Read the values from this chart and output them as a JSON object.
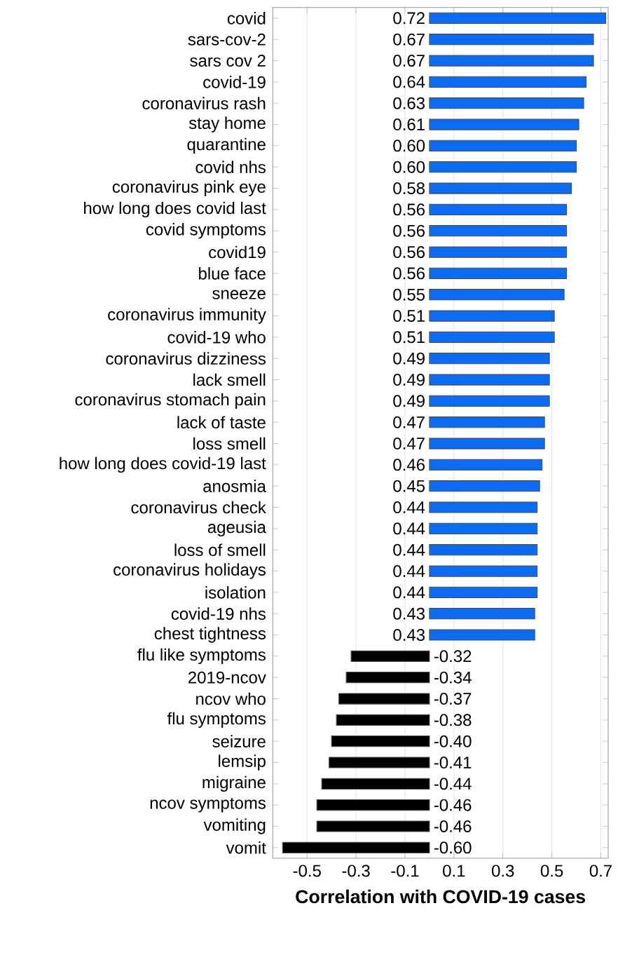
{
  "chart_data": {
    "type": "bar",
    "orientation": "horizontal",
    "xlabel": "Correlation with COVID-19 cases",
    "categories": [
      "covid",
      "sars-cov-2",
      "sars cov 2",
      "covid-19",
      "coronavirus rash",
      "stay home",
      "quarantine",
      "covid nhs",
      "coronavirus pink eye",
      "how long does covid last",
      "covid symptoms",
      "covid19",
      "blue face",
      "sneeze",
      "coronavirus immunity",
      "covid-19 who",
      "coronavirus dizziness",
      "lack smell",
      "coronavirus stomach pain",
      "lack of taste",
      "loss smell",
      "how long does covid-19 last",
      "anosmia",
      "coronavirus check",
      "ageusia",
      "loss of smell",
      "coronavirus holidays",
      "isolation",
      "covid-19 nhs",
      "chest tightness",
      "flu like symptoms",
      "2019-ncov",
      "ncov who",
      "flu symptoms",
      "seizure",
      "lemsip",
      "migraine",
      "ncov symptoms",
      "vomiting",
      "vomit"
    ],
    "values": [
      0.72,
      0.67,
      0.67,
      0.64,
      0.63,
      0.61,
      0.6,
      0.6,
      0.58,
      0.56,
      0.56,
      0.56,
      0.56,
      0.55,
      0.51,
      0.51,
      0.49,
      0.49,
      0.49,
      0.47,
      0.47,
      0.46,
      0.45,
      0.44,
      0.44,
      0.44,
      0.44,
      0.44,
      0.43,
      0.43,
      -0.32,
      -0.34,
      -0.37,
      -0.38,
      -0.4,
      -0.41,
      -0.44,
      -0.46,
      -0.46,
      -0.6
    ],
    "value_labels": [
      "0.72",
      "0.67",
      "0.67",
      "0.64",
      "0.63",
      "0.61",
      "0.60",
      "0.60",
      "0.58",
      "0.56",
      "0.56",
      "0.56",
      "0.56",
      "0.55",
      "0.51",
      "0.51",
      "0.49",
      "0.49",
      "0.49",
      "0.47",
      "0.47",
      "0.46",
      "0.45",
      "0.44",
      "0.44",
      "0.44",
      "0.44",
      "0.44",
      "0.43",
      "0.43",
      "-0.32",
      "-0.34",
      "-0.37",
      "-0.38",
      "-0.40",
      "-0.41",
      "-0.44",
      "-0.46",
      "-0.46",
      "-0.60"
    ],
    "colors": [
      "#0a6cf5",
      "#0a6cf5",
      "#0a6cf5",
      "#0a6cf5",
      "#0a6cf5",
      "#0a6cf5",
      "#0a6cf5",
      "#0a6cf5",
      "#0a6cf5",
      "#0a6cf5",
      "#0a6cf5",
      "#0a6cf5",
      "#0a6cf5",
      "#0a6cf5",
      "#0a6cf5",
      "#0a6cf5",
      "#0a6cf5",
      "#0a6cf5",
      "#0a6cf5",
      "#0a6cf5",
      "#0a6cf5",
      "#0a6cf5",
      "#0a6cf5",
      "#0a6cf5",
      "#0a6cf5",
      "#0a6cf5",
      "#0a6cf5",
      "#0a6cf5",
      "#0a6cf5",
      "#0a6cf5",
      "#000000",
      "#000000",
      "#000000",
      "#000000",
      "#000000",
      "#000000",
      "#000000",
      "#000000",
      "#000000",
      "#000000"
    ],
    "xlim": [
      -0.64,
      0.73
    ],
    "xticks": [
      -0.5,
      -0.3,
      -0.1,
      0.1,
      0.3,
      0.5,
      0.7
    ],
    "grid": "x"
  }
}
